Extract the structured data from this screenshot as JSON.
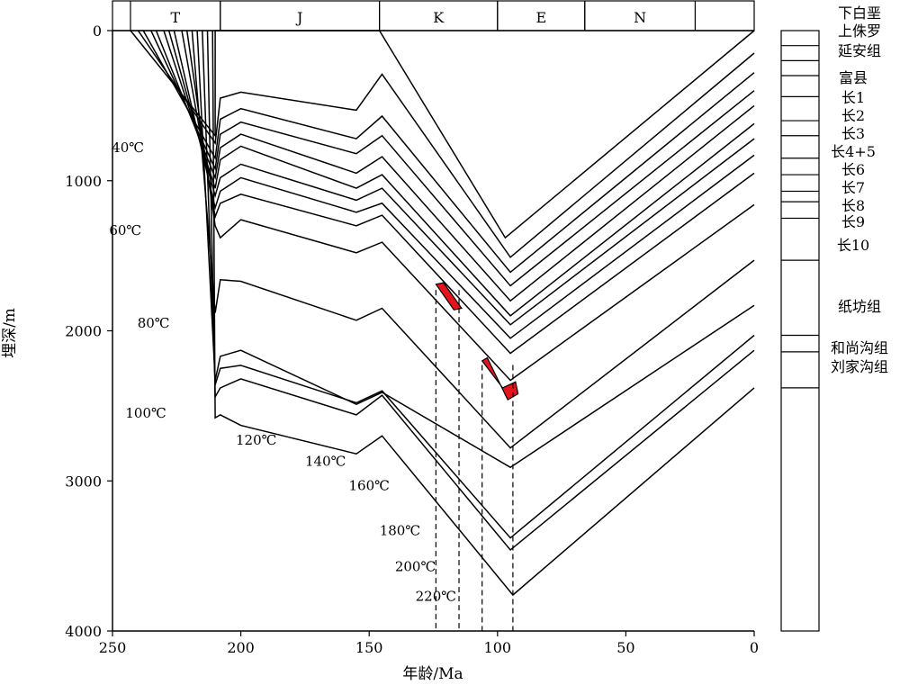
{
  "chart_data": {
    "type": "line",
    "title": "",
    "xlabel": "年龄/Ma",
    "ylabel": "埋深/m",
    "xlim": [
      250,
      0
    ],
    "ylim": [
      0,
      4000
    ],
    "x_ticks": [
      "250",
      "200",
      "150",
      "100",
      "50",
      "0"
    ],
    "y_ticks": [
      "0",
      "1000",
      "2000",
      "3000",
      "4000"
    ],
    "periods": [
      {
        "name": "T",
        "start": 243,
        "end": 208
      },
      {
        "name": "J",
        "start": 208,
        "end": 146
      },
      {
        "name": "K",
        "start": 146,
        "end": 100
      },
      {
        "name": "E",
        "start": 100,
        "end": 66
      },
      {
        "name": "N",
        "start": 66,
        "end": 23
      }
    ],
    "series": [
      {
        "points": [
          [
            243,
            0
          ],
          [
            210,
            700
          ],
          [
            210,
            0
          ],
          [
            155,
            0
          ],
          [
            146,
            0
          ],
          [
            97,
            1380
          ],
          [
            0,
            0
          ]
        ]
      },
      {
        "points": [
          [
            240,
            0
          ],
          [
            210,
            750
          ],
          [
            208,
            450
          ],
          [
            200,
            410
          ],
          [
            155,
            530
          ],
          [
            145,
            290
          ],
          [
            95,
            1510
          ],
          [
            0,
            150
          ]
        ]
      },
      {
        "points": [
          [
            238,
            0
          ],
          [
            210,
            850
          ],
          [
            208,
            590
          ],
          [
            200,
            520
          ],
          [
            155,
            720
          ],
          [
            145,
            570
          ],
          [
            95,
            1610
          ],
          [
            0,
            280
          ]
        ]
      },
      {
        "points": [
          [
            235,
            0
          ],
          [
            210,
            920
          ],
          [
            208,
            690
          ],
          [
            200,
            610
          ],
          [
            155,
            820
          ],
          [
            145,
            700
          ],
          [
            95,
            1700
          ],
          [
            0,
            400
          ]
        ]
      },
      {
        "points": [
          [
            233,
            0
          ],
          [
            210,
            980
          ],
          [
            208,
            780
          ],
          [
            200,
            690
          ],
          [
            155,
            950
          ],
          [
            145,
            840
          ],
          [
            95,
            1800
          ],
          [
            0,
            500
          ]
        ]
      },
      {
        "points": [
          [
            230,
            0
          ],
          [
            210,
            1050
          ],
          [
            208,
            860
          ],
          [
            200,
            770
          ],
          [
            155,
            1050
          ],
          [
            145,
            960
          ],
          [
            95,
            1900
          ],
          [
            0,
            620
          ]
        ]
      },
      {
        "points": [
          [
            228,
            0
          ],
          [
            210,
            1100
          ],
          [
            208,
            980
          ],
          [
            200,
            890
          ],
          [
            155,
            1130
          ],
          [
            145,
            1050
          ],
          [
            95,
            1960
          ],
          [
            0,
            720
          ]
        ]
      },
      {
        "points": [
          [
            226,
            0
          ],
          [
            210,
            1180
          ],
          [
            208,
            1070
          ],
          [
            200,
            980
          ],
          [
            155,
            1210
          ],
          [
            145,
            1150
          ],
          [
            95,
            2050
          ],
          [
            0,
            830
          ]
        ]
      },
      {
        "points": [
          [
            223,
            0
          ],
          [
            210,
            1240
          ],
          [
            208,
            1150
          ],
          [
            200,
            1090
          ],
          [
            155,
            1300
          ],
          [
            145,
            1230
          ],
          [
            95,
            2150
          ],
          [
            0,
            950
          ]
        ]
      },
      {
        "points": [
          [
            221,
            0
          ],
          [
            210,
            1300
          ],
          [
            208,
            1380
          ],
          [
            200,
            1260
          ],
          [
            155,
            1480
          ],
          [
            145,
            1410
          ],
          [
            95,
            2330
          ],
          [
            0,
            1160
          ]
        ]
      },
      {
        "points": [
          [
            219,
            0
          ],
          [
            210,
            1880
          ],
          [
            208,
            1660
          ],
          [
            200,
            1670
          ],
          [
            155,
            1930
          ],
          [
            145,
            1850
          ],
          [
            95,
            2780
          ],
          [
            0,
            1530
          ]
        ]
      },
      {
        "points": [
          [
            217,
            0
          ],
          [
            210,
            2330
          ],
          [
            208,
            2170
          ],
          [
            200,
            2130
          ],
          [
            155,
            2490
          ],
          [
            145,
            2410
          ],
          [
            95,
            2910
          ],
          [
            0,
            1830
          ]
        ]
      },
      {
        "points": [
          [
            215,
            0
          ],
          [
            210,
            2360
          ],
          [
            208,
            2250
          ],
          [
            200,
            2230
          ],
          [
            155,
            2480
          ],
          [
            145,
            2400
          ],
          [
            95,
            3380
          ],
          [
            0,
            2030
          ]
        ]
      },
      {
        "points": [
          [
            213,
            0
          ],
          [
            210,
            2440
          ],
          [
            208,
            2380
          ],
          [
            200,
            2320
          ],
          [
            155,
            2560
          ],
          [
            145,
            2430
          ],
          [
            95,
            3460
          ],
          [
            0,
            2130
          ]
        ]
      },
      {
        "points": [
          [
            211,
            0
          ],
          [
            210,
            2580
          ],
          [
            208,
            2560
          ],
          [
            200,
            2630
          ],
          [
            155,
            2820
          ],
          [
            145,
            2700
          ],
          [
            94,
            3760
          ],
          [
            0,
            2380
          ]
        ]
      }
    ],
    "temperature_labels": [
      {
        "text": "40℃",
        "x": 244,
        "y": 810
      },
      {
        "text": "60℃",
        "x": 245,
        "y": 1360
      },
      {
        "text": "80℃",
        "x": 234,
        "y": 1980
      },
      {
        "text": "100℃",
        "x": 237,
        "y": 2580
      },
      {
        "text": "120℃",
        "x": 194,
        "y": 2760
      },
      {
        "text": "140℃",
        "x": 167,
        "y": 2900
      },
      {
        "text": "160℃",
        "x": 150,
        "y": 3060
      },
      {
        "text": "180℃",
        "x": 138,
        "y": 3360
      },
      {
        "text": "200℃",
        "x": 132,
        "y": 3600
      },
      {
        "text": "220℃",
        "x": 124,
        "y": 3800
      }
    ],
    "highlight_color": "#e3141b",
    "highlight_segments": [
      {
        "points": [
          [
            124,
            1690
          ],
          [
            121,
            1680
          ],
          [
            114,
            1850
          ],
          [
            117,
            1860
          ]
        ],
        "dashed_x": [
          124,
          115
        ]
      },
      {
        "points": [
          [
            106,
            2200
          ],
          [
            104,
            2180
          ],
          [
            96,
            2460
          ],
          [
            92,
            2420
          ],
          [
            93,
            2340
          ],
          [
            98,
            2380
          ]
        ],
        "dashed_x": [
          106,
          94
        ]
      }
    ],
    "strata": [
      {
        "label": "下白垩",
        "boundary": 0
      },
      {
        "label": "上侏罗",
        "boundary": 0
      },
      {
        "label": "延安组",
        "boundary": 100
      },
      {
        "label": "富县",
        "boundary": 200
      },
      {
        "label": "长1",
        "boundary": 300
      },
      {
        "label": "长2",
        "boundary": 440
      },
      {
        "label": "长3",
        "boundary": 600
      },
      {
        "label": "长4+5",
        "boundary": 700
      },
      {
        "label": "长6",
        "boundary": 850
      },
      {
        "label": "长7",
        "boundary": 960
      },
      {
        "label": "长8",
        "boundary": 1070
      },
      {
        "label": "长9",
        "boundary": 1140
      },
      {
        "label": "长10",
        "boundary": 1250
      },
      {
        "label": "纸坊组",
        "boundary": 1530
      },
      {
        "label": "和尚沟组",
        "boundary": 2030
      },
      {
        "label": "刘家沟组",
        "boundary": 2140
      }
    ],
    "strata_bottom": 4000,
    "strata_last_boundary": 2380
  }
}
